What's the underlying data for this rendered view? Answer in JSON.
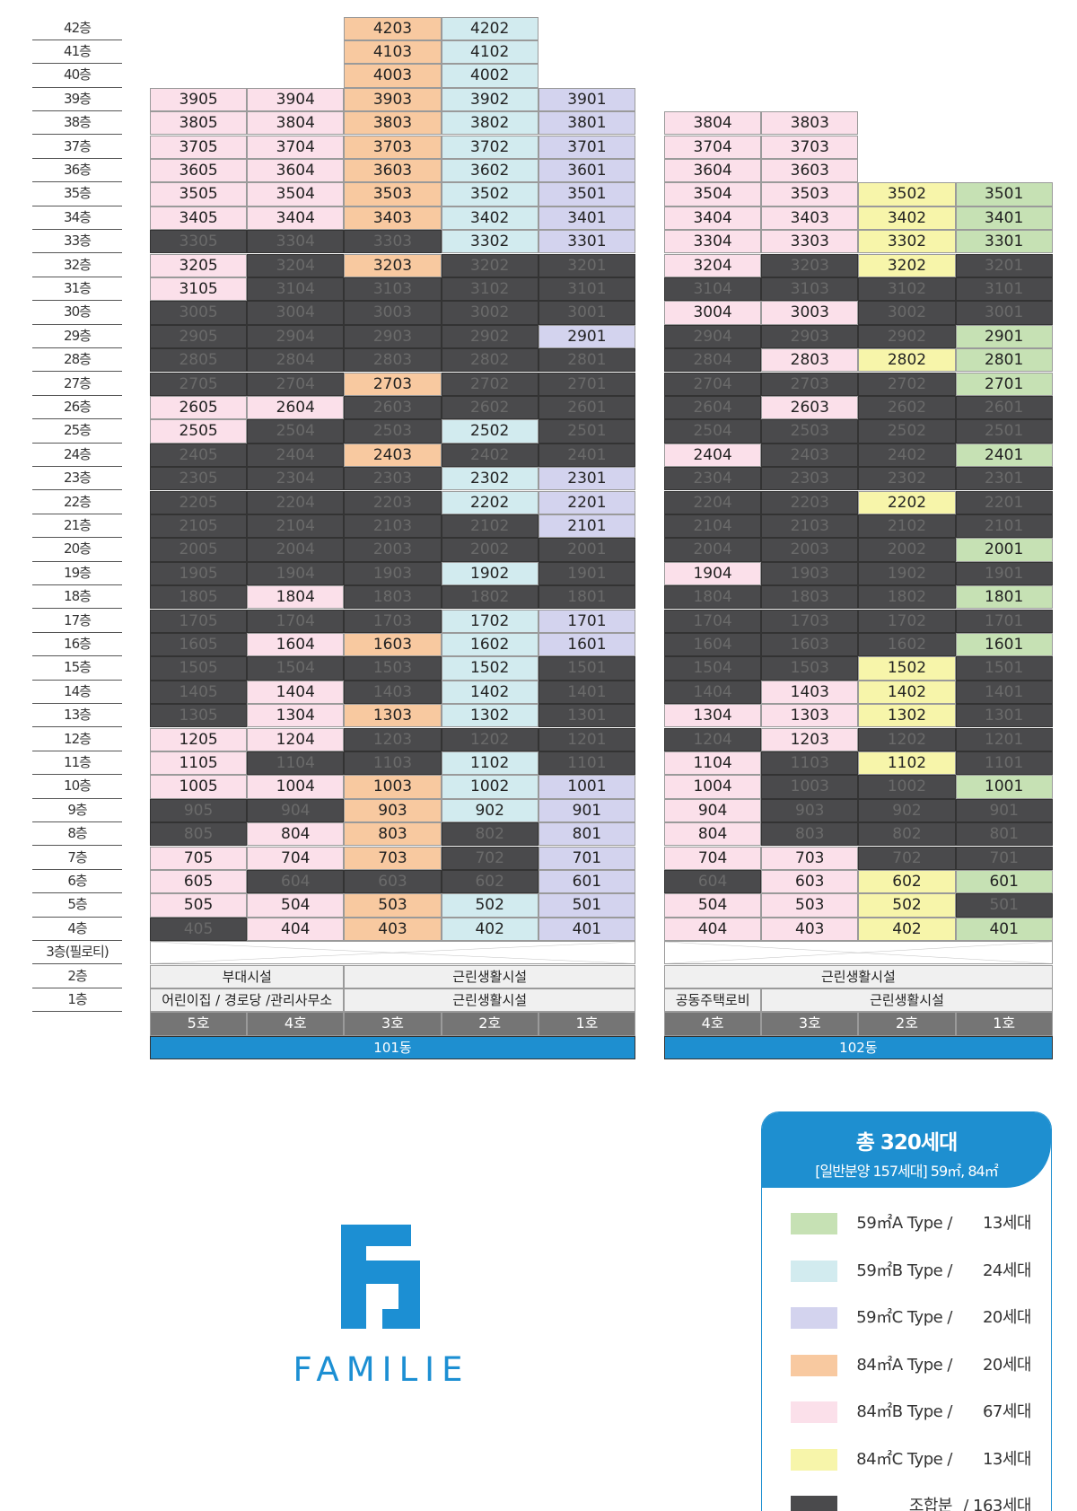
{
  "floors": [
    "42층",
    "41층",
    "40층",
    "39층",
    "38층",
    "37층",
    "36층",
    "35층",
    "34층",
    "33층",
    "32층",
    "31층",
    "30층",
    "29층",
    "28층",
    "27층",
    "26층",
    "25층",
    "24층",
    "23층",
    "22층",
    "21층",
    "20층",
    "19층",
    "18층",
    "17층",
    "16층",
    "15층",
    "14층",
    "13층",
    "12층",
    "11층",
    "10층",
    "9층",
    "8층",
    "7층",
    "6층",
    "5층",
    "4층",
    "3층(필로티)",
    "2층",
    "1층"
  ],
  "type_colors": {
    "A59": "#c6e1b4",
    "B59": "#d2ebef",
    "C59": "#d3d3ee",
    "A84": "#f8c9a0",
    "B84": "#fbe0ea",
    "C84": "#f7f5aa",
    "J": "#4a4a4c"
  },
  "building_101": {
    "name": "101동",
    "ho": [
      "5호",
      "4호",
      "3호",
      "2호",
      "1호"
    ],
    "floor2": [
      "부대시설",
      "근린생활시설"
    ],
    "floor1": [
      "어린이집 / 경로당 /관리사무소",
      "근린생활시설"
    ],
    "rows": [
      [
        "",
        "",
        "A84",
        "B59",
        ""
      ],
      [
        "",
        "",
        "A84",
        "B59",
        ""
      ],
      [
        "",
        "",
        "A84",
        "B59",
        ""
      ],
      [
        "B84",
        "B84",
        "A84",
        "B59",
        "C59"
      ],
      [
        "B84",
        "B84",
        "A84",
        "B59",
        "C59"
      ],
      [
        "B84",
        "B84",
        "A84",
        "B59",
        "C59"
      ],
      [
        "B84",
        "B84",
        "A84",
        "B59",
        "C59"
      ],
      [
        "B84",
        "B84",
        "A84",
        "B59",
        "C59"
      ],
      [
        "B84",
        "B84",
        "A84",
        "B59",
        "C59"
      ],
      [
        "J",
        "J",
        "J",
        "B59",
        "C59"
      ],
      [
        "B84",
        "J",
        "A84",
        "J",
        "J"
      ],
      [
        "B84",
        "J",
        "J",
        "J",
        "J"
      ],
      [
        "J",
        "J",
        "J",
        "J",
        "J"
      ],
      [
        "J",
        "J",
        "J",
        "J",
        "C59"
      ],
      [
        "J",
        "J",
        "J",
        "J",
        "J"
      ],
      [
        "J",
        "J",
        "A84",
        "J",
        "J"
      ],
      [
        "B84",
        "B84",
        "J",
        "J",
        "J"
      ],
      [
        "B84",
        "J",
        "J",
        "B59",
        "J"
      ],
      [
        "J",
        "J",
        "A84",
        "J",
        "J"
      ],
      [
        "J",
        "J",
        "J",
        "B59",
        "C59"
      ],
      [
        "J",
        "J",
        "J",
        "B59",
        "C59"
      ],
      [
        "J",
        "J",
        "J",
        "J",
        "C59"
      ],
      [
        "J",
        "J",
        "J",
        "J",
        "J"
      ],
      [
        "J",
        "J",
        "J",
        "B59",
        "J"
      ],
      [
        "J",
        "B84",
        "J",
        "J",
        "J"
      ],
      [
        "J",
        "J",
        "J",
        "B59",
        "C59"
      ],
      [
        "J",
        "B84",
        "A84",
        "B59",
        "C59"
      ],
      [
        "J",
        "J",
        "J",
        "B59",
        "J"
      ],
      [
        "J",
        "B84",
        "J",
        "B59",
        "J"
      ],
      [
        "J",
        "B84",
        "A84",
        "B59",
        "J"
      ],
      [
        "B84",
        "B84",
        "J",
        "J",
        "J"
      ],
      [
        "B84",
        "J",
        "J",
        "B59",
        "J"
      ],
      [
        "B84",
        "B84",
        "A84",
        "B59",
        "C59"
      ],
      [
        "J",
        "J",
        "A84",
        "B59",
        "C59"
      ],
      [
        "J",
        "B84",
        "A84",
        "J",
        "C59"
      ],
      [
        "B84",
        "B84",
        "A84",
        "J",
        "C59"
      ],
      [
        "B84",
        "J",
        "J",
        "J",
        "C59"
      ],
      [
        "B84",
        "B84",
        "A84",
        "B59",
        "C59"
      ],
      [
        "J",
        "B84",
        "A84",
        "B59",
        "C59"
      ]
    ]
  },
  "building_102": {
    "name": "102동",
    "ho": [
      "4호",
      "3호",
      "2호",
      "1호"
    ],
    "floor2": [
      "근린생활시설"
    ],
    "floor1": [
      "공동주택로비",
      "근린생활시설"
    ],
    "rows": [
      [
        "B84",
        "B84",
        "",
        ""
      ],
      [
        "B84",
        "B84",
        "",
        ""
      ],
      [
        "B84",
        "B84",
        "",
        ""
      ],
      [
        "B84",
        "B84",
        "C84",
        "A59"
      ],
      [
        "B84",
        "B84",
        "C84",
        "A59"
      ],
      [
        "B84",
        "B84",
        "C84",
        "A59"
      ],
      [
        "B84",
        "J",
        "C84",
        "J"
      ],
      [
        "J",
        "J",
        "J",
        "J"
      ],
      [
        "B84",
        "B84",
        "J",
        "J"
      ],
      [
        "J",
        "J",
        "J",
        "A59"
      ],
      [
        "J",
        "B84",
        "C84",
        "A59"
      ],
      [
        "J",
        "J",
        "J",
        "A59"
      ],
      [
        "J",
        "B84",
        "J",
        "J"
      ],
      [
        "J",
        "J",
        "J",
        "J"
      ],
      [
        "B84",
        "J",
        "J",
        "A59"
      ],
      [
        "J",
        "J",
        "J",
        "J"
      ],
      [
        "J",
        "J",
        "C84",
        "J"
      ],
      [
        "J",
        "J",
        "J",
        "J"
      ],
      [
        "J",
        "J",
        "J",
        "A59"
      ],
      [
        "B84",
        "J",
        "J",
        "J"
      ],
      [
        "J",
        "J",
        "J",
        "A59"
      ],
      [
        "J",
        "J",
        "J",
        "J"
      ],
      [
        "J",
        "J",
        "J",
        "A59"
      ],
      [
        "J",
        "J",
        "C84",
        "J"
      ],
      [
        "J",
        "B84",
        "C84",
        "J"
      ],
      [
        "B84",
        "B84",
        "C84",
        "J"
      ],
      [
        "J",
        "B84",
        "J",
        "J"
      ],
      [
        "B84",
        "J",
        "C84",
        "J"
      ],
      [
        "B84",
        "J",
        "J",
        "A59"
      ],
      [
        "B84",
        "J",
        "J",
        "J"
      ],
      [
        "B84",
        "J",
        "J",
        "J"
      ],
      [
        "B84",
        "B84",
        "J",
        "J"
      ],
      [
        "J",
        "B84",
        "C84",
        "A59"
      ],
      [
        "B84",
        "B84",
        "C84",
        "J"
      ],
      [
        "B84",
        "B84",
        "C84",
        "A59"
      ]
    ]
  },
  "legend": {
    "title": "총 320세대",
    "subtitle": "[일반분양 157세대] 59㎡, 84㎡",
    "items": [
      {
        "type": "A59",
        "label": "59㎡A Type /",
        "count": "13세대"
      },
      {
        "type": "B59",
        "label": "59㎡B Type /",
        "count": "24세대"
      },
      {
        "type": "C59",
        "label": "59㎡C Type /",
        "count": "20세대"
      },
      {
        "type": "A84",
        "label": "84㎡A Type /",
        "count": "20세대"
      },
      {
        "type": "B84",
        "label": "84㎡B Type /",
        "count": "67세대"
      },
      {
        "type": "C84",
        "label": "84㎡C Type /",
        "count": "13세대"
      },
      {
        "type": "J",
        "label": "조합분",
        "count": "/ 163세대"
      }
    ]
  },
  "logo": {
    "text": "FAMILIE"
  }
}
